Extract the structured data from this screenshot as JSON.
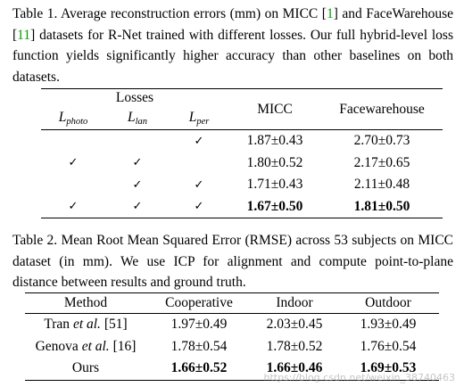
{
  "table1": {
    "caption": {
      "p1": "Table 1. Average reconstruction errors (mm) on MICC [",
      "ref1": "1",
      "p2": "] and FaceWarehouse [",
      "ref2": "11",
      "p3": "] datasets for R-Net trained with different losses. Our full hybrid-level loss function yields significantly higher accuracy than other baselines on both datasets."
    },
    "group_header": "Losses",
    "loss_columns": [
      {
        "base": "L",
        "sub": "photo"
      },
      {
        "base": "L",
        "sub": "lan"
      },
      {
        "base": "L",
        "sub": "per"
      }
    ],
    "metric_columns": [
      "MICC",
      "Facewarehouse"
    ],
    "check_symbol": "✓",
    "rows": [
      {
        "photo": "",
        "lan": "",
        "per": "✓",
        "micc": "1.87±0.43",
        "fw": "2.70±0.73",
        "bold": false
      },
      {
        "photo": "✓",
        "lan": "✓",
        "per": "",
        "micc": "1.80±0.52",
        "fw": "2.17±0.65",
        "bold": false
      },
      {
        "photo": "",
        "lan": "✓",
        "per": "✓",
        "micc": "1.71±0.43",
        "fw": "2.11±0.48",
        "bold": false
      },
      {
        "photo": "✓",
        "lan": "✓",
        "per": "✓",
        "micc": "1.67±0.50",
        "fw": "1.81±0.50",
        "bold": true
      }
    ]
  },
  "table2": {
    "caption": "Table 2. Mean Root Mean Squared Error (RMSE) across 53 subjects on MICC dataset (in mm). We use ICP for alignment and compute point-to-plane distance between results and ground truth.",
    "columns": [
      "Method",
      "Cooperative",
      "Indoor",
      "Outdoor"
    ],
    "rows": [
      {
        "name": "Tran",
        "etal": "et al.",
        "ref": "[51]",
        "coop": "1.97±0.49",
        "indoor": "2.03±0.45",
        "outdoor": "1.93±0.49",
        "bold": false
      },
      {
        "name": "Genova",
        "etal": "et al.",
        "ref": "[16]",
        "coop": "1.78±0.54",
        "indoor": "1.78±0.52",
        "outdoor": "1.76±0.54",
        "bold": false
      },
      {
        "name": "Ours",
        "etal": "",
        "ref": "",
        "coop": "1.66±0.52",
        "indoor": "1.66±0.46",
        "outdoor": "1.69±0.53",
        "bold": true
      }
    ]
  },
  "watermark": "https://blog.csdn.net/weixin_38740463",
  "colors": {
    "citation": "#00a000",
    "text": "#000000",
    "background": "#ffffff"
  }
}
